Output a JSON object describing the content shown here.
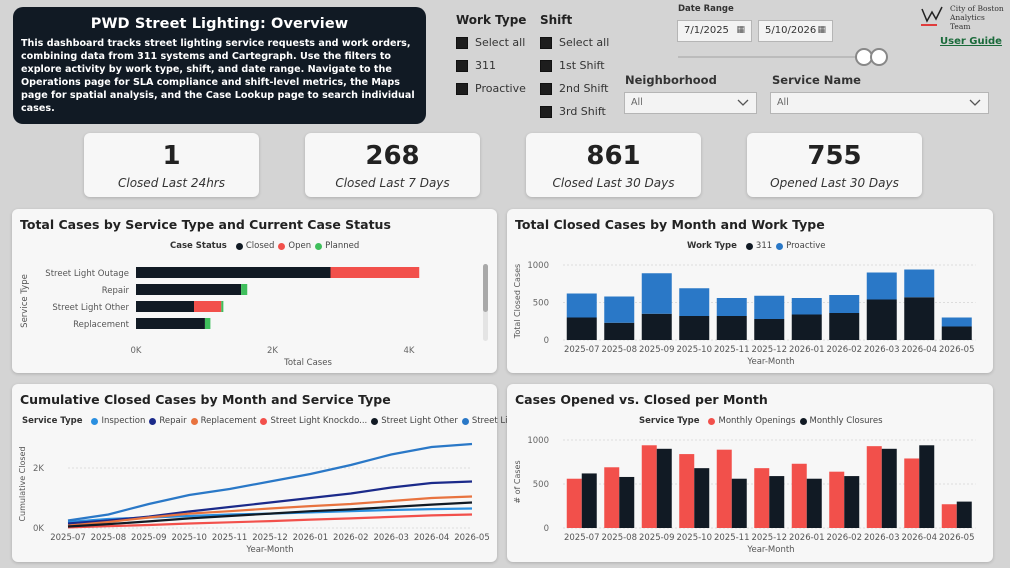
{
  "header": {
    "title": "PWD Street Lighting: Overview",
    "description": "This dashboard tracks street lighting service requests and work orders, combining data from 311 systems and Cartegraph. Use the filters to explore activity by work type, shift, and date range. Navigate to the Operations page for SLA compliance and shift-level metrics, the Maps page for spatial analysis, and the Case Lookup page to search individual cases."
  },
  "filters": {
    "work_type": {
      "title": "Work Type",
      "options": [
        "Select all",
        "311",
        "Proactive"
      ]
    },
    "shift": {
      "title": "Shift",
      "options": [
        "Select all",
        "1st Shift",
        "2nd Shift",
        "3rd Shift"
      ]
    },
    "date_range": {
      "label": "Date Range",
      "start": "7/1/2025",
      "end": "5/10/2026"
    },
    "neighborhood": {
      "label": "Neighborhood",
      "value": "All"
    },
    "service_name": {
      "label": "Service Name",
      "value": "All"
    }
  },
  "brand": {
    "logo_text": "City of Boston Analytics Team",
    "user_guide": "User Guide"
  },
  "kpis": [
    {
      "value": "1",
      "label": "Closed Last 24hrs"
    },
    {
      "value": "268",
      "label": "Closed Last 7 Days"
    },
    {
      "value": "861",
      "label": "Closed Last 30 Days"
    },
    {
      "value": "755",
      "label": "Opened Last 30 Days"
    }
  ],
  "colors": {
    "closed": "#111a24",
    "open": "#f2504b",
    "planned": "#3fbf5c",
    "proactive": "#2a78c7",
    "dark": "#111a24",
    "red": "#f2504b",
    "inspection": "#2a8fe0",
    "repair": "#1b2a8a",
    "replacement": "#e8733f",
    "knockdown": "#f2504b",
    "other": "#111a24",
    "outage": "#2a78c7"
  },
  "charts": {
    "status": {
      "title": "Total Cases by Service Type and Current Case Status",
      "legend_title": "Case Status",
      "legend": [
        "Closed",
        "Open",
        "Planned"
      ],
      "ylabel": "Service Type",
      "xlabel": "Total Cases",
      "ticks": [
        "0K",
        "2K",
        "4K"
      ]
    },
    "closed_month": {
      "title": "Total Closed Cases by Month and Work Type",
      "legend_title": "Work Type",
      "legend": [
        "311",
        "Proactive"
      ],
      "ylabel": "Total Closed Cases",
      "xlabel": "Year-Month",
      "ticks": [
        "0",
        "500",
        "1000"
      ]
    },
    "cumulative": {
      "title": "Cumulative Closed Cases by Month and Service Type",
      "legend_title": "Service Type",
      "legend": [
        "Inspection",
        "Repair",
        "Replacement",
        "Street Light Knockdo...",
        "Street Light Other",
        "Street Light O..."
      ],
      "ylabel": "Cumulative Closed",
      "xlabel": "Year-Month",
      "ticks": [
        "0K",
        "2K"
      ]
    },
    "opened_closed": {
      "title": "Cases Opened vs. Closed per Month",
      "legend_title": "Service Type",
      "legend": [
        "Monthly Openings",
        "Monthly Closures"
      ],
      "ylabel": "# of Cases",
      "xlabel": "Year-Month",
      "ticks": [
        "0",
        "500",
        "1000"
      ]
    }
  },
  "chart_data": [
    {
      "type": "bar",
      "orientation": "horizontal",
      "stacked": true,
      "categories": [
        "Street Light Outage",
        "Repair",
        "Street Light Other",
        "Replacement"
      ],
      "series": [
        {
          "name": "Closed",
          "values": [
            2850,
            1540,
            850,
            1010
          ]
        },
        {
          "name": "Open",
          "values": [
            1300,
            0,
            400,
            0
          ]
        },
        {
          "name": "Planned",
          "values": [
            0,
            90,
            30,
            80
          ]
        }
      ],
      "xlim": [
        0,
        5000
      ]
    },
    {
      "type": "bar",
      "stacked": true,
      "categories": [
        "2025-07",
        "2025-08",
        "2025-09",
        "2025-10",
        "2025-11",
        "2025-12",
        "2026-01",
        "2026-02",
        "2026-03",
        "2026-04",
        "2026-05"
      ],
      "series": [
        {
          "name": "311",
          "values": [
            300,
            230,
            350,
            320,
            320,
            280,
            340,
            360,
            540,
            570,
            180
          ]
        },
        {
          "name": "Proactive",
          "values": [
            320,
            350,
            540,
            370,
            240,
            310,
            220,
            240,
            360,
            370,
            120
          ]
        }
      ],
      "ylim": [
        0,
        1000
      ]
    },
    {
      "type": "line",
      "x": [
        "2025-07",
        "2025-08",
        "2025-09",
        "2025-10",
        "2025-11",
        "2025-12",
        "2026-01",
        "2026-02",
        "2026-03",
        "2026-04",
        "2026-05"
      ],
      "series": [
        {
          "name": "Inspection",
          "values": [
            200,
            300,
            350,
            400,
            450,
            480,
            520,
            560,
            600,
            630,
            650
          ]
        },
        {
          "name": "Repair",
          "values": [
            150,
            250,
            380,
            550,
            700,
            850,
            1000,
            1150,
            1350,
            1500,
            1550
          ]
        },
        {
          "name": "Replacement",
          "values": [
            80,
            200,
            350,
            480,
            560,
            650,
            730,
            800,
            900,
            1000,
            1050
          ]
        },
        {
          "name": "Street Light Knockdo...",
          "values": [
            20,
            60,
            100,
            150,
            190,
            230,
            280,
            320,
            370,
            420,
            450
          ]
        },
        {
          "name": "Street Light Other",
          "values": [
            50,
            130,
            220,
            320,
            400,
            480,
            560,
            620,
            700,
            780,
            850
          ]
        },
        {
          "name": "Street Light O...",
          "values": [
            250,
            450,
            800,
            1100,
            1300,
            1550,
            1800,
            2100,
            2450,
            2700,
            2800
          ]
        }
      ],
      "ylim": [
        0,
        3000
      ]
    },
    {
      "type": "bar",
      "categories": [
        "2025-07",
        "2025-08",
        "2025-09",
        "2025-10",
        "2025-11",
        "2025-12",
        "2026-01",
        "2026-02",
        "2026-03",
        "2026-04",
        "2026-05"
      ],
      "series": [
        {
          "name": "Monthly Openings",
          "values": [
            560,
            690,
            940,
            840,
            890,
            680,
            730,
            640,
            930,
            790,
            270
          ]
        },
        {
          "name": "Monthly Closures",
          "values": [
            620,
            580,
            900,
            680,
            560,
            590,
            560,
            590,
            900,
            940,
            300
          ]
        }
      ],
      "ylim": [
        0,
        1000
      ]
    }
  ]
}
